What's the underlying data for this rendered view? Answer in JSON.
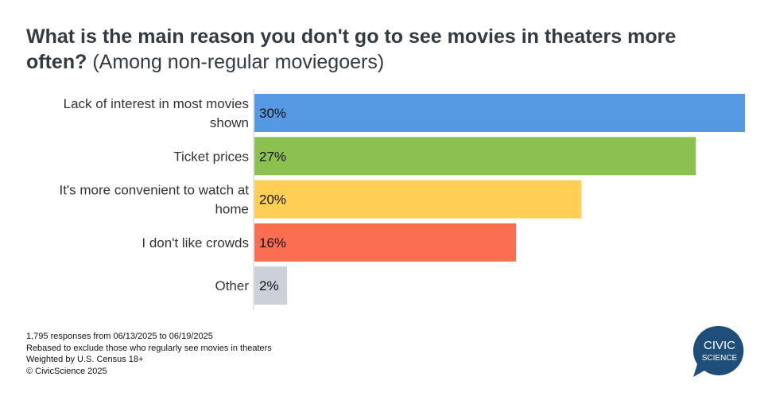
{
  "title": {
    "main": "What is the main reason you don't go to see movies in theaters more often?",
    "subtitle": "(Among non-regular moviegoers)"
  },
  "chart_data": {
    "type": "bar",
    "orientation": "horizontal",
    "title": "What is the main reason you don't go to see movies in theaters more often? (Among non-regular moviegoers)",
    "categories": [
      [
        "Lack of interest in most movies",
        "shown"
      ],
      [
        "Ticket prices"
      ],
      [
        "It's more convenient to watch at",
        "home"
      ],
      [
        "I don't like crowds"
      ],
      [
        "Other"
      ]
    ],
    "values": [
      30,
      27,
      20,
      16,
      2
    ],
    "data_labels": [
      "30%",
      "27%",
      "20%",
      "16%",
      "2%"
    ],
    "colors": [
      "#5599e3",
      "#8cc152",
      "#ffce54",
      "#fc6e51",
      "#ccd0d9"
    ],
    "xlim": [
      0,
      30
    ],
    "grid": false,
    "xlabel": "",
    "ylabel": ""
  },
  "footer": [
    "1,795 responses from 06/13/2025 to 06/19/2025",
    "Rebased to exclude those who regularly see movies in theaters",
    "Weighted by U.S. Census 18+",
    "© CivicScience 2025"
  ],
  "logo": {
    "line1": "CIVIC",
    "line2": "SCIENCE",
    "color": "#1f4e7a"
  }
}
